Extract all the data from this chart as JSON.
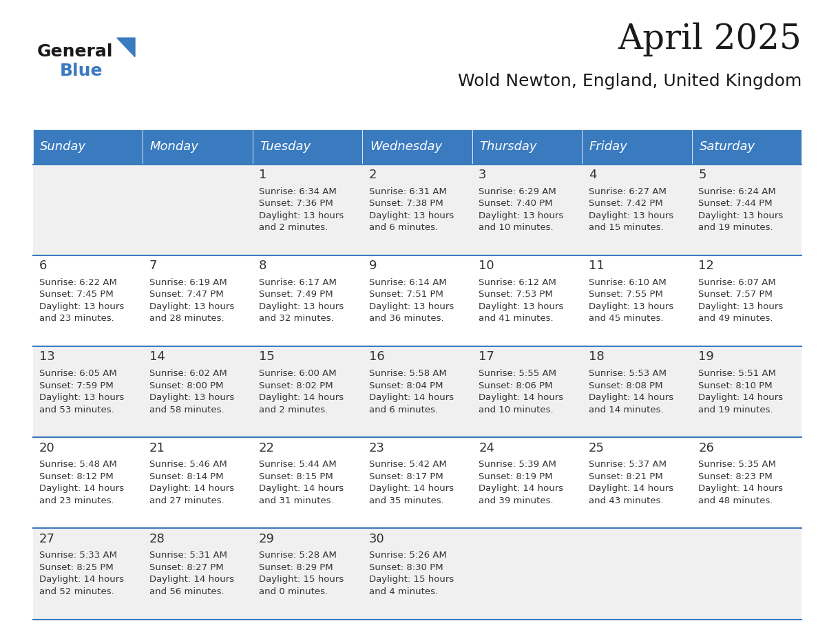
{
  "title": "April 2025",
  "subtitle": "Wold Newton, England, United Kingdom",
  "header_bg": "#3a7abf",
  "header_text_color": "#ffffff",
  "day_names": [
    "Sunday",
    "Monday",
    "Tuesday",
    "Wednesday",
    "Thursday",
    "Friday",
    "Saturday"
  ],
  "row_bg_even": "#f0f0f0",
  "row_bg_odd": "#ffffff",
  "cell_border_color": "#3a7abf",
  "text_color": "#333333",
  "date_color": "#333333",
  "weeks": [
    [
      {
        "day": "",
        "info": ""
      },
      {
        "day": "",
        "info": ""
      },
      {
        "day": "1",
        "info": "Sunrise: 6:34 AM\nSunset: 7:36 PM\nDaylight: 13 hours\nand 2 minutes."
      },
      {
        "day": "2",
        "info": "Sunrise: 6:31 AM\nSunset: 7:38 PM\nDaylight: 13 hours\nand 6 minutes."
      },
      {
        "day": "3",
        "info": "Sunrise: 6:29 AM\nSunset: 7:40 PM\nDaylight: 13 hours\nand 10 minutes."
      },
      {
        "day": "4",
        "info": "Sunrise: 6:27 AM\nSunset: 7:42 PM\nDaylight: 13 hours\nand 15 minutes."
      },
      {
        "day": "5",
        "info": "Sunrise: 6:24 AM\nSunset: 7:44 PM\nDaylight: 13 hours\nand 19 minutes."
      }
    ],
    [
      {
        "day": "6",
        "info": "Sunrise: 6:22 AM\nSunset: 7:45 PM\nDaylight: 13 hours\nand 23 minutes."
      },
      {
        "day": "7",
        "info": "Sunrise: 6:19 AM\nSunset: 7:47 PM\nDaylight: 13 hours\nand 28 minutes."
      },
      {
        "day": "8",
        "info": "Sunrise: 6:17 AM\nSunset: 7:49 PM\nDaylight: 13 hours\nand 32 minutes."
      },
      {
        "day": "9",
        "info": "Sunrise: 6:14 AM\nSunset: 7:51 PM\nDaylight: 13 hours\nand 36 minutes."
      },
      {
        "day": "10",
        "info": "Sunrise: 6:12 AM\nSunset: 7:53 PM\nDaylight: 13 hours\nand 41 minutes."
      },
      {
        "day": "11",
        "info": "Sunrise: 6:10 AM\nSunset: 7:55 PM\nDaylight: 13 hours\nand 45 minutes."
      },
      {
        "day": "12",
        "info": "Sunrise: 6:07 AM\nSunset: 7:57 PM\nDaylight: 13 hours\nand 49 minutes."
      }
    ],
    [
      {
        "day": "13",
        "info": "Sunrise: 6:05 AM\nSunset: 7:59 PM\nDaylight: 13 hours\nand 53 minutes."
      },
      {
        "day": "14",
        "info": "Sunrise: 6:02 AM\nSunset: 8:00 PM\nDaylight: 13 hours\nand 58 minutes."
      },
      {
        "day": "15",
        "info": "Sunrise: 6:00 AM\nSunset: 8:02 PM\nDaylight: 14 hours\nand 2 minutes."
      },
      {
        "day": "16",
        "info": "Sunrise: 5:58 AM\nSunset: 8:04 PM\nDaylight: 14 hours\nand 6 minutes."
      },
      {
        "day": "17",
        "info": "Sunrise: 5:55 AM\nSunset: 8:06 PM\nDaylight: 14 hours\nand 10 minutes."
      },
      {
        "day": "18",
        "info": "Sunrise: 5:53 AM\nSunset: 8:08 PM\nDaylight: 14 hours\nand 14 minutes."
      },
      {
        "day": "19",
        "info": "Sunrise: 5:51 AM\nSunset: 8:10 PM\nDaylight: 14 hours\nand 19 minutes."
      }
    ],
    [
      {
        "day": "20",
        "info": "Sunrise: 5:48 AM\nSunset: 8:12 PM\nDaylight: 14 hours\nand 23 minutes."
      },
      {
        "day": "21",
        "info": "Sunrise: 5:46 AM\nSunset: 8:14 PM\nDaylight: 14 hours\nand 27 minutes."
      },
      {
        "day": "22",
        "info": "Sunrise: 5:44 AM\nSunset: 8:15 PM\nDaylight: 14 hours\nand 31 minutes."
      },
      {
        "day": "23",
        "info": "Sunrise: 5:42 AM\nSunset: 8:17 PM\nDaylight: 14 hours\nand 35 minutes."
      },
      {
        "day": "24",
        "info": "Sunrise: 5:39 AM\nSunset: 8:19 PM\nDaylight: 14 hours\nand 39 minutes."
      },
      {
        "day": "25",
        "info": "Sunrise: 5:37 AM\nSunset: 8:21 PM\nDaylight: 14 hours\nand 43 minutes."
      },
      {
        "day": "26",
        "info": "Sunrise: 5:35 AM\nSunset: 8:23 PM\nDaylight: 14 hours\nand 48 minutes."
      }
    ],
    [
      {
        "day": "27",
        "info": "Sunrise: 5:33 AM\nSunset: 8:25 PM\nDaylight: 14 hours\nand 52 minutes."
      },
      {
        "day": "28",
        "info": "Sunrise: 5:31 AM\nSunset: 8:27 PM\nDaylight: 14 hours\nand 56 minutes."
      },
      {
        "day": "29",
        "info": "Sunrise: 5:28 AM\nSunset: 8:29 PM\nDaylight: 15 hours\nand 0 minutes."
      },
      {
        "day": "30",
        "info": "Sunrise: 5:26 AM\nSunset: 8:30 PM\nDaylight: 15 hours\nand 4 minutes."
      },
      {
        "day": "",
        "info": ""
      },
      {
        "day": "",
        "info": ""
      },
      {
        "day": "",
        "info": ""
      }
    ]
  ],
  "logo_general_color": "#1a1a1a",
  "logo_blue_color": "#3a7abf",
  "title_fontsize": 36,
  "subtitle_fontsize": 18,
  "header_fontsize": 13,
  "day_num_fontsize": 13,
  "info_fontsize": 9.5
}
